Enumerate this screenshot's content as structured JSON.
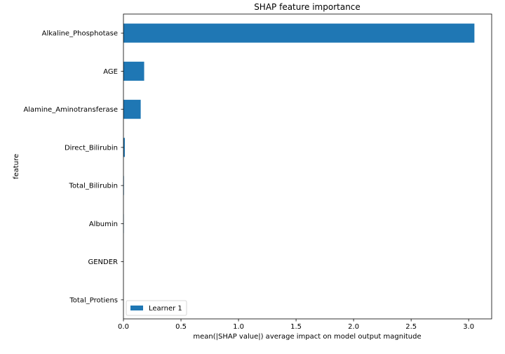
{
  "chart_data": {
    "type": "bar",
    "orientation": "horizontal",
    "title": "SHAP feature importance",
    "xlabel": "mean(|SHAP value|) average impact on model output magnitude",
    "ylabel": "feature",
    "categories": [
      "Alkaline_Phosphotase",
      "AGE",
      "Alamine_Aminotransferase",
      "Direct_Bilirubin",
      "Total_Bilirubin",
      "Albumin",
      "GENDER",
      "Total_Protiens"
    ],
    "series": [
      {
        "name": "Learner 1",
        "color": "#1f77b4",
        "values": [
          3.05,
          0.18,
          0.15,
          0.012,
          0.004,
          0.003,
          0.0,
          0.0
        ]
      }
    ],
    "xlim": [
      0.0,
      3.2
    ],
    "xticks": [
      "0.0",
      "0.5",
      "1.0",
      "1.5",
      "2.0",
      "2.5",
      "3.0"
    ],
    "grid": false,
    "legend_position": "lower-left"
  }
}
